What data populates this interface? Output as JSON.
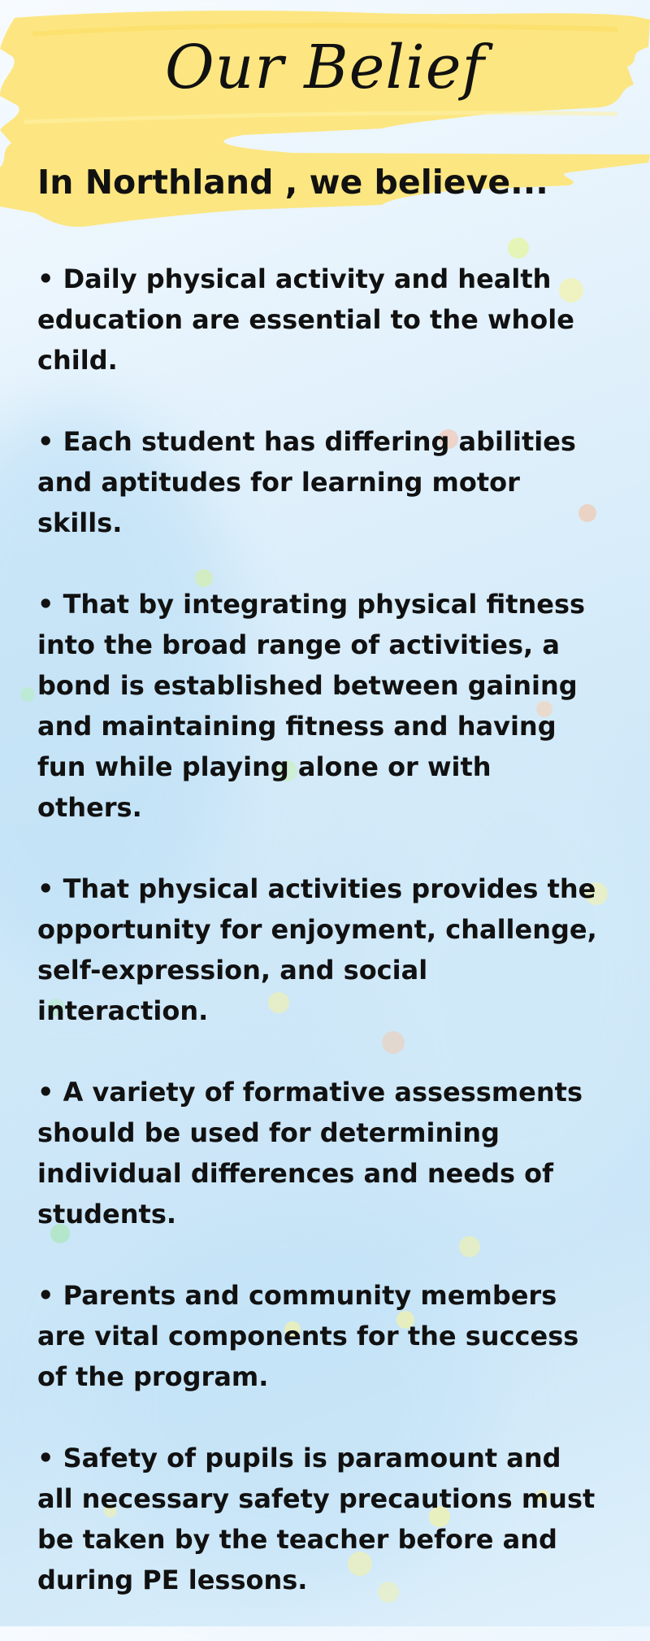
{
  "title": "Our Belief",
  "headline": "In Northland , we believe...",
  "beliefs": [
    "• Daily physical activity and health education are essential to the whole child.",
    "• Each student has differing abilities and aptitudes for learning motor skills.",
    "• That by integrating physical fitness into the broad range of activities, a bond is established between gaining and maintaining fitness and having fun while playing alone or with others.",
    "• That physical activities provides the opportunity for enjoyment, challenge, self-expression, and social interaction.",
    "• A variety of formative assessments should be used for determining individual differences and needs of students.",
    "• Parents and community members are vital components for the success of the program.",
    "• Safety of pupils is paramount and all necessary safety precautions must be taken by the teacher before and during PE lessons."
  ],
  "colors": {
    "banner": "#fde57a",
    "text": "#111111",
    "background": "#d6ecfa"
  }
}
